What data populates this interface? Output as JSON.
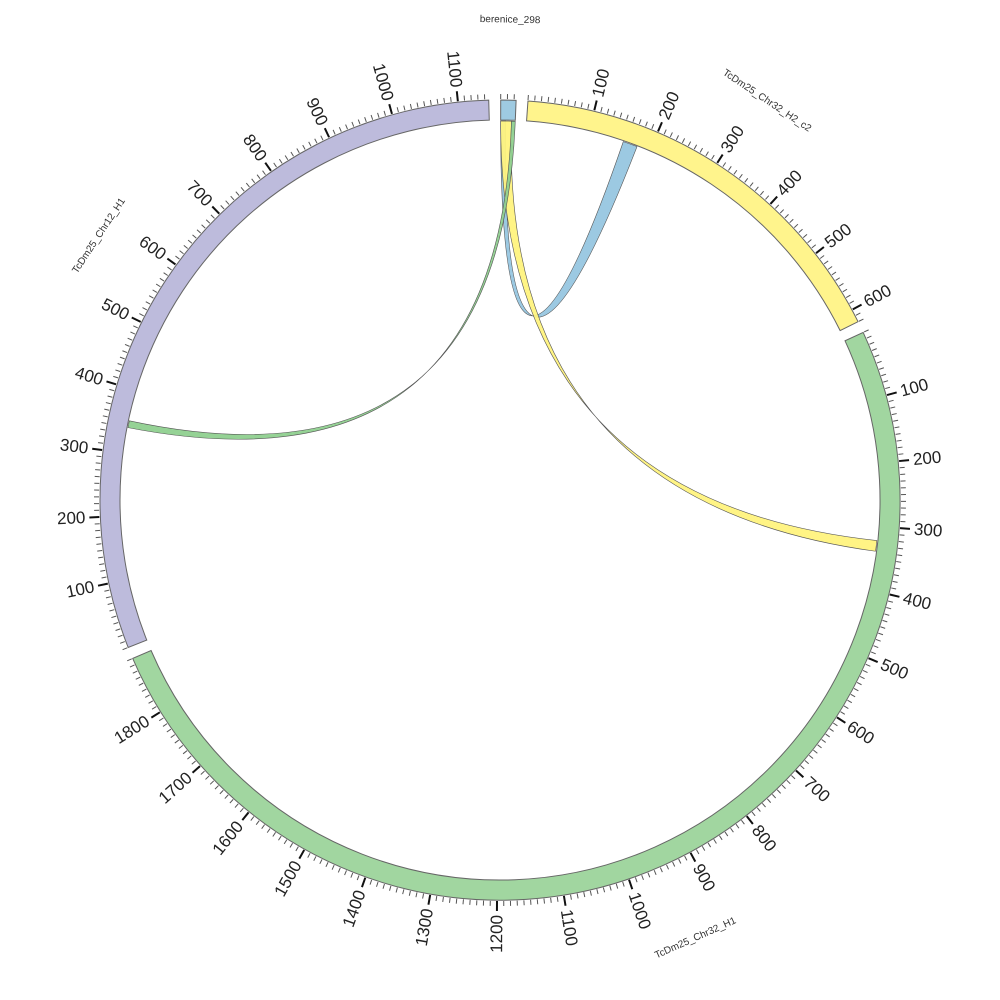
{
  "diagram": {
    "type": "circos-chord",
    "sectors": [
      {
        "name": "berenice_298",
        "length": 23,
        "color": "#9ecae1",
        "ticks": []
      },
      {
        "name": "TcDm25_Chr32_H2_c2",
        "length": 620,
        "color": "#fff48c",
        "ticks": [
          "100",
          "200",
          "300",
          "400",
          "500",
          "600"
        ]
      },
      {
        "name": "TcDm25_Chr32_H1",
        "length": 1890,
        "color": "#a1d6a0",
        "ticks": [
          "100",
          "200",
          "300",
          "400",
          "500",
          "600",
          "700",
          "800",
          "900",
          "1000",
          "1100",
          "1200",
          "1300",
          "1400",
          "1500",
          "1600",
          "1700",
          "1800"
        ]
      },
      {
        "name": "TcDm25_Chr12_H1",
        "length": 1146,
        "color": "#bdbbdc",
        "ticks": [
          "100",
          "200",
          "300",
          "400",
          "500",
          "600",
          "700",
          "800",
          "900",
          "1000",
          "1100"
        ]
      }
    ],
    "links": [
      {
        "source": "berenice_298",
        "source_range": [
          0,
          8
        ],
        "target": "TcDm25_Chr32_H2_c2",
        "target_range": [
          156,
          179
        ],
        "color": "#97c6e0"
      },
      {
        "source": "berenice_298",
        "source_range": [
          0,
          17
        ],
        "target": "TcDm25_Chr32_H1",
        "target_range": [
          322,
          339
        ],
        "color": "#fff37e"
      },
      {
        "source": "berenice_298",
        "source_range": [
          17,
          23
        ],
        "target": "TcDm25_Chr12_H1",
        "target_range": [
          340,
          351
        ],
        "color": "#8fd08f"
      }
    ]
  }
}
